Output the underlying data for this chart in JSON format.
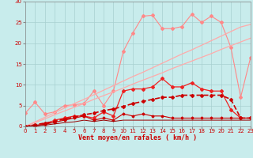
{
  "xlabel": "Vent moyen/en rafales ( km/h )",
  "background_color": "#c8ecec",
  "grid_color": "#a8d0d0",
  "x": [
    0,
    1,
    2,
    3,
    4,
    5,
    6,
    7,
    8,
    9,
    10,
    11,
    12,
    13,
    14,
    15,
    16,
    17,
    18,
    19,
    20,
    21,
    22,
    23
  ],
  "lines": [
    {
      "name": "pink_jagged_markers",
      "color": "#ff8888",
      "lw": 0.8,
      "marker": "D",
      "markersize": 2.0,
      "dashed": false,
      "y": [
        3.2,
        5.8,
        3.0,
        3.5,
        5.0,
        5.2,
        5.5,
        8.5,
        5.0,
        8.5,
        18.0,
        22.5,
        26.5,
        26.7,
        23.5,
        23.5,
        24.0,
        27.0,
        25.0,
        26.5,
        25.0,
        19.0,
        7.0,
        16.5
      ]
    },
    {
      "name": "pink_straight1",
      "color": "#ffaaaa",
      "lw": 0.9,
      "marker": null,
      "markersize": 0,
      "dashed": false,
      "y": [
        0.0,
        1.1,
        2.2,
        3.3,
        4.4,
        5.5,
        6.5,
        7.6,
        8.7,
        9.8,
        10.9,
        12.0,
        13.0,
        14.1,
        15.2,
        16.3,
        17.4,
        18.4,
        19.5,
        20.6,
        21.7,
        22.8,
        23.9,
        24.5
      ]
    },
    {
      "name": "pink_straight2",
      "color": "#ffaaaa",
      "lw": 0.9,
      "marker": null,
      "markersize": 0,
      "dashed": false,
      "y": [
        0.0,
        0.9,
        1.8,
        2.8,
        3.7,
        4.6,
        5.5,
        6.5,
        7.4,
        8.3,
        9.2,
        10.2,
        11.1,
        12.0,
        12.9,
        13.9,
        14.8,
        15.7,
        16.6,
        17.5,
        18.5,
        19.4,
        20.3,
        21.2
      ]
    },
    {
      "name": "medium_red_markers",
      "color": "#ee2222",
      "lw": 0.9,
      "marker": "D",
      "markersize": 2.0,
      "dashed": false,
      "y": [
        0.0,
        0.0,
        0.5,
        1.5,
        2.0,
        2.5,
        2.5,
        2.0,
        3.5,
        2.5,
        8.5,
        9.0,
        9.0,
        9.5,
        11.5,
        9.5,
        9.5,
        10.5,
        9.0,
        8.5,
        8.5,
        4.0,
        2.0,
        2.0
      ]
    },
    {
      "name": "dark_red_dashed_markers",
      "color": "#cc0000",
      "lw": 1.2,
      "marker": "D",
      "markersize": 2.0,
      "dashed": true,
      "y": [
        0.0,
        0.4,
        0.8,
        1.2,
        1.8,
        2.2,
        2.8,
        3.2,
        3.8,
        4.2,
        4.8,
        5.5,
        6.0,
        6.5,
        7.0,
        7.0,
        7.5,
        7.5,
        7.5,
        7.5,
        7.5,
        6.5,
        2.0,
        2.0
      ]
    },
    {
      "name": "dark_red_solid_markers",
      "color": "#cc0000",
      "lw": 0.8,
      "marker": "D",
      "markersize": 1.5,
      "dashed": false,
      "y": [
        0.0,
        0.3,
        0.5,
        1.0,
        1.5,
        2.0,
        2.5,
        1.5,
        2.0,
        1.5,
        3.0,
        2.5,
        3.0,
        2.5,
        2.5,
        2.0,
        2.0,
        2.0,
        2.0,
        2.0,
        2.0,
        2.0,
        2.0,
        2.0
      ]
    },
    {
      "name": "darkest_red_line",
      "color": "#990000",
      "lw": 0.7,
      "marker": null,
      "markersize": 0,
      "dashed": false,
      "y": [
        0.0,
        0.2,
        0.3,
        0.6,
        0.9,
        1.1,
        1.5,
        1.2,
        1.5,
        1.2,
        1.5,
        1.5,
        1.5,
        1.5,
        1.5,
        1.5,
        1.5,
        1.5,
        1.5,
        1.5,
        1.5,
        1.5,
        1.5,
        1.5
      ]
    }
  ],
  "yticks": [
    0,
    5,
    10,
    15,
    20,
    25,
    30
  ],
  "xticks": [
    0,
    1,
    2,
    3,
    4,
    5,
    6,
    7,
    8,
    9,
    10,
    11,
    12,
    13,
    14,
    15,
    16,
    17,
    18,
    19,
    20,
    21,
    22,
    23
  ],
  "ylim": [
    0,
    30
  ],
  "xlim": [
    0,
    23
  ]
}
